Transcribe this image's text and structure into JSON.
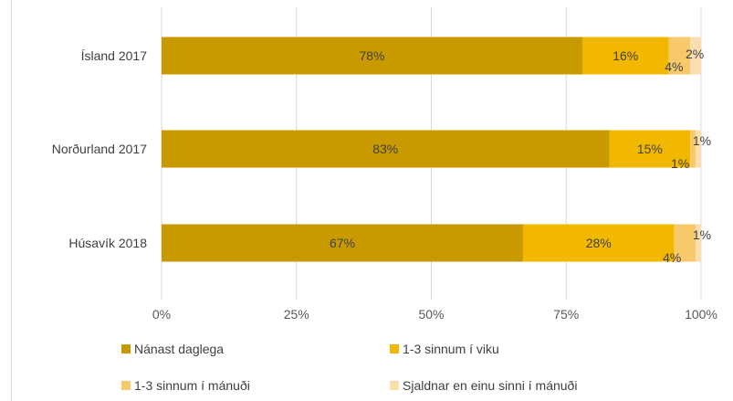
{
  "chart_data": {
    "type": "bar",
    "orientation": "horizontal",
    "stacked": "percent",
    "categories": [
      "Ísland 2017",
      "Norðurland 2017",
      "Húsavík 2018"
    ],
    "series": [
      {
        "name": "Nánast daglega",
        "color": "#c99a00",
        "values": [
          78,
          83,
          67
        ],
        "labels": [
          "78%",
          "83%",
          "67%"
        ]
      },
      {
        "name": "1-3 sinnum í viku",
        "color": "#f2b800",
        "values": [
          16,
          15,
          28
        ],
        "labels": [
          "16%",
          "15%",
          "28%"
        ]
      },
      {
        "name": "1-3 sinnum í mánuði",
        "color": "#f7c96a",
        "values": [
          4,
          1,
          4
        ],
        "labels": [
          "4%",
          "1%",
          "4%"
        ]
      },
      {
        "name": "Sjaldnar en einu sinni í mánuði",
        "color": "#fbdeb0",
        "values": [
          2,
          1,
          1
        ],
        "labels": [
          "2%",
          "1%",
          "1%"
        ]
      }
    ],
    "xticks": [
      "0%",
      "25%",
      "50%",
      "75%",
      "100%"
    ],
    "xlim": [
      0,
      100
    ],
    "grid": true,
    "legend": "bottom",
    "title": "",
    "xlabel": "",
    "ylabel": ""
  }
}
